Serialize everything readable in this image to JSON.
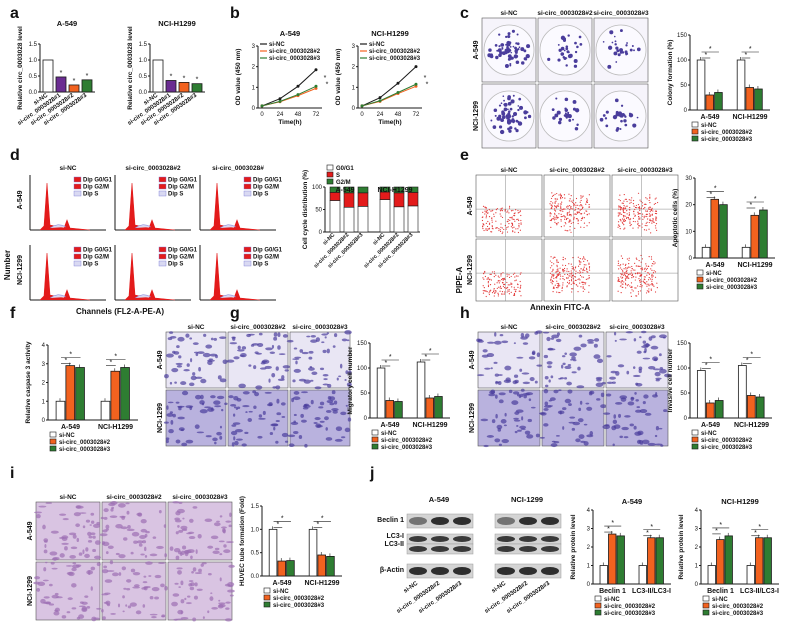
{
  "colors": {
    "white": "#ffffff",
    "black": "#1a1a1a",
    "orange": "#f2621f",
    "green": "#2e7d32",
    "purple": "#6a2c91",
    "red": "#e31b1b",
    "blue": "#7777d8",
    "lightblue": "#d9d9f2",
    "stain": "#4a3d9c",
    "stainLight": "#c9c4e6",
    "dotRed": "#e33b3b",
    "he": "#c8a9d8"
  },
  "panelLetters": [
    "a",
    "b",
    "c",
    "d",
    "e",
    "f",
    "g",
    "h",
    "i",
    "j"
  ],
  "common": {
    "nc": "si-NC",
    "s2": "si-circ_0003028#2",
    "s3": "si-circ_0003028#3",
    "s3short": "si-circ_0003028#",
    "a549": "A-549",
    "h1299": "NCI-H1299",
    "n1299": "NCI-1299",
    "star": "*"
  },
  "a": {
    "ylabel": "Relative circ_0003028 level",
    "ylim": [
      0,
      1.5
    ],
    "ticks": [
      "0.0",
      "0.5",
      "1.0",
      "1.5"
    ],
    "xlabels": [
      "si-NC",
      "si-circ_0003028#1",
      "si-circ_0003028#2",
      "si-circ_0003028#3"
    ],
    "charts": [
      {
        "title": "A-549",
        "values": [
          1.0,
          0.47,
          0.22,
          0.38
        ],
        "colors": [
          "#ffffff",
          "#6a2c91",
          "#f2621f",
          "#2e7d32"
        ]
      },
      {
        "title": "NCI-H1299",
        "values": [
          1.0,
          0.36,
          0.3,
          0.26
        ],
        "colors": [
          "#ffffff",
          "#6a2c91",
          "#f2621f",
          "#2e7d32"
        ]
      }
    ]
  },
  "b": {
    "ylabel": "OD value (450 nm)",
    "xlabel": "Time(h)",
    "xticks": [
      "0",
      "24",
      "48",
      "72"
    ],
    "yticks": [
      "0",
      "1",
      "2",
      "3"
    ],
    "charts": [
      {
        "title": "A-549",
        "series": [
          {
            "name": "si-NC",
            "values": [
              0.1,
              0.45,
              1.05,
              1.85
            ]
          },
          {
            "name": "si-circ_0003028#2",
            "values": [
              0.1,
              0.3,
              0.6,
              0.95
            ]
          },
          {
            "name": "si-circ_0003028#3",
            "values": [
              0.1,
              0.32,
              0.65,
              1.05
            ]
          }
        ]
      },
      {
        "title": "NCI-H1299",
        "series": [
          {
            "name": "si-NC",
            "values": [
              0.1,
              0.5,
              1.2,
              2.0
            ]
          },
          {
            "name": "si-circ_0003028#2",
            "values": [
              0.1,
              0.32,
              0.7,
              1.05
            ]
          },
          {
            "name": "si-circ_0003028#3",
            "values": [
              0.1,
              0.35,
              0.75,
              1.15
            ]
          }
        ]
      }
    ]
  },
  "c": {
    "ylabel": "Colony formation (%)",
    "yticks": [
      "0",
      "50",
      "100",
      "150"
    ],
    "ylim": [
      0,
      150
    ],
    "groups": [
      "A-549",
      "NCI-H1299"
    ],
    "series": [
      {
        "name": "si-NC",
        "values": [
          100,
          100
        ]
      },
      {
        "name": "si-circ_0003028#2",
        "values": [
          30,
          45
        ]
      },
      {
        "name": "si-circ_0003028#3",
        "values": [
          35,
          42
        ]
      }
    ],
    "cols": [
      "si-NC",
      "si-circ_0003028#2",
      "si-circ_0003028#3"
    ],
    "rows": [
      "A-549",
      "NCI-1299"
    ]
  },
  "d": {
    "ylabel": "Cell cycle distribution (%)",
    "yticks": [
      "0",
      "50",
      "100"
    ],
    "legend": [
      "G0/G1",
      "S",
      "G2/M"
    ],
    "groups": [
      "A-549",
      "NCI-H1299"
    ],
    "stack": [
      {
        "g0g1": 70,
        "s": 18,
        "g2m": 12
      },
      {
        "g0g1": 55,
        "s": 32,
        "g2m": 13
      },
      {
        "g0g1": 57,
        "s": 30,
        "g2m": 13
      },
      {
        "g0g1": 72,
        "s": 17,
        "g2m": 11
      },
      {
        "g0g1": 56,
        "s": 31,
        "g2m": 13
      },
      {
        "g0g1": 58,
        "s": 30,
        "g2m": 12
      }
    ],
    "xlabels": [
      "si-NC",
      "si-circ_0003028#2",
      "si-circ_0003028#3"
    ],
    "histLegend": [
      "Dip G0/G1",
      "Dip G2/M",
      "Dip S"
    ],
    "cols": [
      "si-NC",
      "si-circ_0003028#2",
      "si-circ_0003028#"
    ],
    "rows": [
      "A-549",
      "NCI-1299"
    ],
    "axisY": "Number",
    "axisX": "Channels (FL2-A-PE-A)"
  },
  "e": {
    "ylabel": "Apoptotic cells (%)",
    "yticks": [
      "0",
      "10",
      "20",
      "30"
    ],
    "ylim": [
      0,
      30
    ],
    "groups": [
      "A-549",
      "NCI-H1299"
    ],
    "series": [
      {
        "name": "si-NC",
        "values": [
          4,
          4
        ]
      },
      {
        "name": "si-circ_0003028#2",
        "values": [
          22,
          16
        ]
      },
      {
        "name": "si-circ_0003028#3",
        "values": [
          20,
          18
        ]
      }
    ],
    "cols": [
      "si-NC",
      "si-circ_0003028#2",
      "si-circ_0003028#3"
    ],
    "rows": [
      "A-549",
      "NCI-1299"
    ],
    "axisY": "PIPE-A",
    "axisX": "Annexin FITC-A"
  },
  "f": {
    "ylabel": "Relative caspase 3 activity",
    "yticks": [
      "0",
      "1",
      "2",
      "3",
      "4"
    ],
    "ylim": [
      0,
      4
    ],
    "groups": [
      "A-549",
      "NCI-H1299"
    ],
    "series": [
      {
        "name": "si-NC",
        "values": [
          1.0,
          1.0
        ]
      },
      {
        "name": "si-circ_0003028#2",
        "values": [
          2.9,
          2.6
        ]
      },
      {
        "name": "si-circ_0003028#3",
        "values": [
          2.8,
          2.8
        ]
      }
    ]
  },
  "g": {
    "ylabel": "Migratory cell number",
    "yticks": [
      "0",
      "50",
      "100",
      "150"
    ],
    "ylim": [
      0,
      150
    ],
    "groups": [
      "A-549",
      "NCI-H1299"
    ],
    "series": [
      {
        "name": "si-NC",
        "values": [
          100,
          112
        ]
      },
      {
        "name": "si-circ_0003028#2",
        "values": [
          35,
          40
        ]
      },
      {
        "name": "si-circ_0003028#3",
        "values": [
          33,
          43
        ]
      }
    ],
    "cols": [
      "si-NC",
      "si-circ_0003028#2",
      "si-circ_0003028#3"
    ],
    "rows": [
      "A-549",
      "NCI-1299"
    ]
  },
  "h": {
    "ylabel": "Invasive cell number",
    "yticks": [
      "0",
      "50",
      "100",
      "150"
    ],
    "ylim": [
      0,
      150
    ],
    "groups": [
      "A-549",
      "NCI-H1299"
    ],
    "series": [
      {
        "name": "si-NC",
        "values": [
          95,
          105
        ]
      },
      {
        "name": "si-circ_0003028#2",
        "values": [
          30,
          45
        ]
      },
      {
        "name": "si-circ_0003028#3",
        "values": [
          35,
          42
        ]
      }
    ],
    "cols": [
      "si-NC",
      "si-circ_0003028#2",
      "si-circ_0003028#3"
    ],
    "rows": [
      "A-549",
      "NCI-1299"
    ]
  },
  "i": {
    "ylabel": "HUVEC tube formation (Fold)",
    "yticks": [
      "0.0",
      "0.5",
      "1.0",
      "1.5"
    ],
    "ylim": [
      0,
      1.5
    ],
    "groups": [
      "A-549",
      "NCI-H1299"
    ],
    "series": [
      {
        "name": "si-NC",
        "values": [
          1.0,
          1.0
        ]
      },
      {
        "name": "si-circ_0003028#2",
        "values": [
          0.32,
          0.45
        ]
      },
      {
        "name": "si-circ_0003028#3",
        "values": [
          0.33,
          0.42
        ]
      }
    ],
    "cols": [
      "si-NC",
      "si-circ_0003028#2",
      "si-circ_0003028#3"
    ],
    "rows": [
      "A-549",
      "NCI-1299"
    ]
  },
  "j": {
    "blotTitles": [
      "A-549",
      "NCI-1299"
    ],
    "bands": [
      "Beclin 1",
      "LC3-I",
      "LC3-II",
      "β-Actin"
    ],
    "lanes": [
      "si-NC",
      "si-circ_0003028#2",
      "si-circ_0003028#3"
    ],
    "charts": [
      {
        "title": "A-549",
        "groups": [
          "Beclin 1",
          "LC3-II/LC3-I"
        ],
        "series": [
          {
            "name": "si-NC",
            "values": [
              1.0,
              1.0
            ]
          },
          {
            "name": "si-circ_0003028#2",
            "values": [
              2.7,
              2.5
            ]
          },
          {
            "name": "si-circ_0003028#3",
            "values": [
              2.6,
              2.5
            ]
          }
        ]
      },
      {
        "title": "NCI-H1299",
        "groups": [
          "Beclin 1",
          "LC3-II/LC3-I"
        ],
        "series": [
          {
            "name": "si-NC",
            "values": [
              1.0,
              1.0
            ]
          },
          {
            "name": "si-circ_0003028#2",
            "values": [
              2.4,
              2.5
            ]
          },
          {
            "name": "si-circ_0003028#3",
            "values": [
              2.6,
              2.5
            ]
          }
        ]
      }
    ],
    "ylabel": "Relative protein level",
    "yticks": [
      "0",
      "1",
      "2",
      "3",
      "4"
    ],
    "ylim": [
      0,
      4
    ]
  }
}
